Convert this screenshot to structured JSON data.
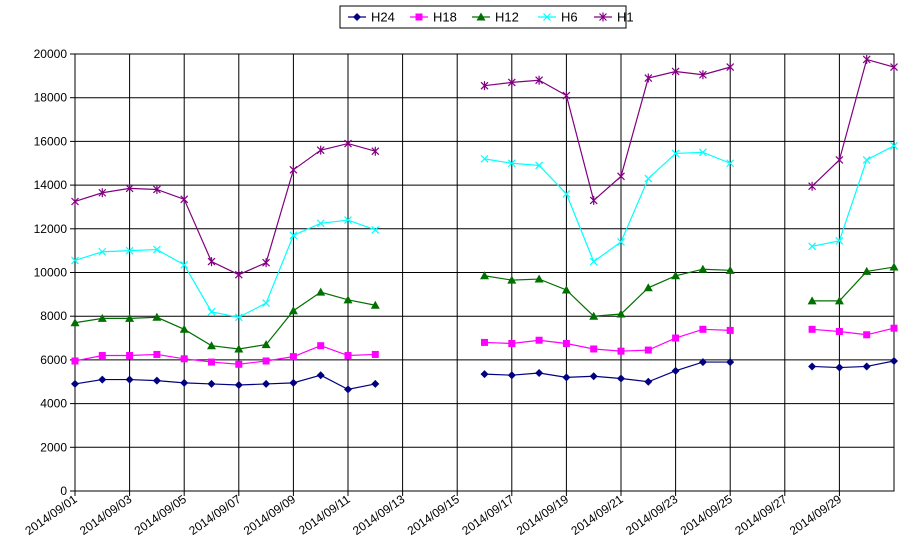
{
  "chart_data": {
    "type": "line",
    "xlabel": "",
    "ylabel": "",
    "ylim": [
      0,
      20000
    ],
    "y_ticks": [
      0,
      2000,
      4000,
      6000,
      8000,
      10000,
      12000,
      14000,
      16000,
      18000,
      20000
    ],
    "y_tick_labels": [
      "0",
      "2000",
      "4000",
      "6000",
      "8000",
      "10000",
      "12000",
      "14000",
      "16000",
      "18000",
      "20000"
    ],
    "x": [
      "2014/09/01",
      "2014/09/02",
      "2014/09/03",
      "2014/09/04",
      "2014/09/05",
      "2014/09/06",
      "2014/09/07",
      "2014/09/08",
      "2014/09/09",
      "2014/09/10",
      "2014/09/11",
      "2014/09/12",
      "2014/09/13",
      "2014/09/14",
      "2014/09/15",
      "2014/09/16",
      "2014/09/17",
      "2014/09/18",
      "2014/09/19",
      "2014/09/20",
      "2014/09/21",
      "2014/09/22",
      "2014/09/23",
      "2014/09/24",
      "2014/09/25",
      "2014/09/26",
      "2014/09/27",
      "2014/09/28",
      "2014/09/29",
      "2014/09/30",
      "2014/10/01"
    ],
    "x_tick_labels": [
      "2014/09/01",
      "2014/09/03",
      "2014/09/05",
      "2014/09/07",
      "2014/09/09",
      "2014/09/11",
      "2014/09/13",
      "2014/09/15",
      "2014/09/17",
      "2014/09/19",
      "2014/09/21",
      "2014/09/23",
      "2014/09/25",
      "2014/09/27",
      "2014/09/29"
    ],
    "grid": true,
    "legend_position": "top-center",
    "series": [
      {
        "name": "H24",
        "color": "#000080",
        "marker": "diamond",
        "values": [
          4900,
          5100,
          5100,
          5050,
          4950,
          4900,
          4850,
          4900,
          4950,
          5300,
          4650,
          4900,
          null,
          null,
          null,
          5350,
          5300,
          5400,
          5200,
          5250,
          5150,
          5000,
          5500,
          5900,
          5900,
          null,
          null,
          5700,
          5650,
          5700,
          5950
        ]
      },
      {
        "name": "H18",
        "color": "#ff00ff",
        "marker": "square",
        "values": [
          5950,
          6200,
          6200,
          6250,
          6050,
          5900,
          5800,
          5950,
          6150,
          6650,
          6200,
          6250,
          null,
          null,
          null,
          6800,
          6750,
          6900,
          6750,
          6500,
          6400,
          6450,
          7000,
          7400,
          7350,
          null,
          null,
          7400,
          7300,
          7150,
          7450
        ]
      },
      {
        "name": "H12",
        "color": "#007000",
        "marker": "triangle",
        "values": [
          7700,
          7900,
          7900,
          7950,
          7400,
          6650,
          6500,
          6700,
          8250,
          9100,
          8750,
          8500,
          null,
          null,
          null,
          9850,
          9650,
          9700,
          9200,
          8000,
          8100,
          9300,
          9850,
          10150,
          10100,
          null,
          null,
          8700,
          8700,
          10050,
          10250
        ]
      },
      {
        "name": "H6",
        "color": "#00ffff",
        "marker": "x",
        "values": [
          10550,
          10950,
          11000,
          11050,
          10350,
          8200,
          7950,
          8600,
          11700,
          12250,
          12400,
          11950,
          null,
          null,
          null,
          15200,
          15000,
          14900,
          13600,
          10500,
          11400,
          14300,
          15450,
          15500,
          15000,
          null,
          null,
          11200,
          11450,
          15150,
          15800
        ]
      },
      {
        "name": "H1",
        "color": "#800080",
        "marker": "star",
        "values": [
          13250,
          13650,
          13850,
          13800,
          13350,
          10500,
          9900,
          10450,
          14700,
          15600,
          15900,
          15550,
          null,
          null,
          null,
          18550,
          18700,
          18800,
          18100,
          13300,
          14400,
          18900,
          19200,
          19050,
          19400,
          null,
          null,
          13950,
          15150,
          19750,
          19400
        ]
      }
    ]
  }
}
